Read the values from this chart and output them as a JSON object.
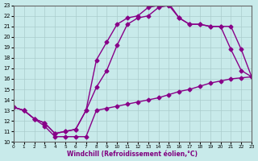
{
  "xlabel": "Windchill (Refroidissement éolien,°C)",
  "background_color": "#c8eaea",
  "line_color": "#880088",
  "grid_color": "#aacccc",
  "xlim": [
    0,
    23
  ],
  "ylim": [
    10,
    23
  ],
  "xticks": [
    0,
    1,
    2,
    3,
    4,
    5,
    6,
    7,
    8,
    9,
    10,
    11,
    12,
    13,
    14,
    15,
    16,
    17,
    18,
    19,
    20,
    21,
    22,
    23
  ],
  "yticks": [
    10,
    11,
    12,
    13,
    14,
    15,
    16,
    17,
    18,
    19,
    20,
    21,
    22,
    23
  ],
  "line1_x": [
    0,
    1,
    2,
    3,
    4,
    5,
    6,
    7,
    8,
    9,
    10,
    11,
    12,
    13,
    14,
    15,
    16,
    17,
    18,
    19,
    20,
    21,
    22,
    23
  ],
  "line1_y": [
    13.3,
    13.0,
    12.2,
    11.5,
    10.5,
    10.5,
    10.5,
    10.5,
    13.0,
    13.2,
    13.4,
    13.6,
    13.8,
    14.0,
    14.2,
    14.5,
    14.8,
    15.0,
    15.3,
    15.6,
    15.8,
    16.0,
    16.1,
    16.2
  ],
  "line2_x": [
    0,
    1,
    2,
    3,
    4,
    5,
    6,
    7,
    8,
    9,
    10,
    11,
    12,
    13,
    14,
    15,
    16,
    17,
    18,
    19,
    20,
    21,
    22,
    23
  ],
  "line2_y": [
    13.3,
    13.0,
    12.2,
    11.8,
    10.8,
    11.0,
    11.2,
    13.0,
    15.2,
    16.8,
    19.2,
    21.2,
    21.8,
    22.0,
    22.8,
    23.0,
    21.8,
    21.2,
    21.2,
    21.0,
    21.0,
    18.8,
    16.8,
    16.2
  ],
  "line3_x": [
    0,
    1,
    2,
    3,
    4,
    5,
    6,
    7,
    8,
    9,
    10,
    11,
    12,
    13,
    14,
    15,
    16,
    17,
    18,
    19,
    20,
    21,
    22,
    23
  ],
  "line3_y": [
    13.3,
    13.0,
    12.2,
    11.8,
    10.8,
    11.0,
    11.2,
    13.0,
    17.8,
    19.5,
    21.2,
    21.8,
    22.0,
    22.8,
    23.0,
    23.2,
    21.8,
    21.2,
    21.2,
    21.0,
    21.0,
    21.0,
    18.8,
    16.2
  ],
  "marker": "D",
  "markersize": 2.5,
  "linewidth": 1.0
}
